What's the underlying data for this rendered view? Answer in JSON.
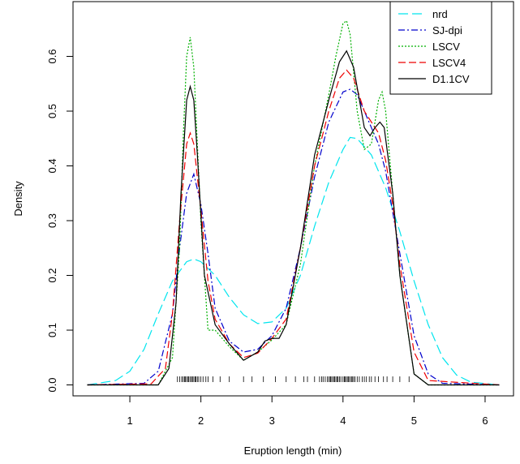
{
  "chart_data": {
    "type": "line",
    "xlabel": "Eruption length (min)",
    "ylabel": "Density",
    "xlim": [
      0.2,
      6.4
    ],
    "ylim": [
      -0.02,
      0.7
    ],
    "x_ticks": [
      1,
      2,
      3,
      4,
      5,
      6
    ],
    "y_ticks": [
      0.0,
      0.1,
      0.2,
      0.3,
      0.4,
      0.5,
      0.6
    ],
    "x_tick_labels": [
      "1",
      "2",
      "3",
      "4",
      "5",
      "6"
    ],
    "y_tick_labels": [
      "0.0",
      "0.1",
      "0.2",
      "0.3",
      "0.4",
      "0.5",
      "0.6"
    ],
    "grid": false,
    "legend_position": "top-right",
    "series": [
      {
        "name": "nrd",
        "color": "#00E5EE",
        "dash": "12,5",
        "x": [
          0.4,
          0.8,
          1.0,
          1.2,
          1.4,
          1.6,
          1.8,
          1.9,
          2.0,
          2.2,
          2.4,
          2.6,
          2.8,
          3.0,
          3.2,
          3.4,
          3.6,
          3.8,
          4.0,
          4.1,
          4.2,
          4.4,
          4.6,
          4.8,
          5.0,
          5.2,
          5.4,
          5.6,
          5.8,
          6.2
        ],
        "y": [
          0.0,
          0.008,
          0.025,
          0.065,
          0.13,
          0.19,
          0.225,
          0.23,
          0.225,
          0.2,
          0.16,
          0.128,
          0.112,
          0.115,
          0.14,
          0.2,
          0.29,
          0.37,
          0.43,
          0.452,
          0.45,
          0.42,
          0.36,
          0.28,
          0.19,
          0.11,
          0.05,
          0.018,
          0.005,
          0.0
        ]
      },
      {
        "name": "SJ-dpi",
        "color": "#0000CC",
        "dash": "8,3,2,3",
        "x": [
          0.4,
          1.2,
          1.4,
          1.6,
          1.7,
          1.8,
          1.9,
          2.0,
          2.1,
          2.2,
          2.4,
          2.6,
          2.8,
          3.0,
          3.2,
          3.4,
          3.6,
          3.8,
          4.0,
          4.1,
          4.2,
          4.3,
          4.4,
          4.5,
          4.6,
          4.8,
          5.0,
          5.2,
          5.4,
          6.2
        ],
        "y": [
          0.0,
          0.003,
          0.025,
          0.13,
          0.25,
          0.35,
          0.385,
          0.33,
          0.24,
          0.14,
          0.08,
          0.06,
          0.065,
          0.09,
          0.14,
          0.25,
          0.38,
          0.48,
          0.535,
          0.54,
          0.53,
          0.5,
          0.47,
          0.44,
          0.39,
          0.24,
          0.09,
          0.02,
          0.003,
          0.0
        ]
      },
      {
        "name": "LSCV",
        "color": "#00B000",
        "dash": "2,2",
        "x": [
          0.4,
          1.4,
          1.6,
          1.7,
          1.75,
          1.8,
          1.85,
          1.9,
          2.0,
          2.1,
          2.2,
          2.4,
          2.6,
          2.8,
          3.0,
          3.2,
          3.4,
          3.6,
          3.8,
          3.9,
          4.0,
          4.05,
          4.1,
          4.2,
          4.3,
          4.4,
          4.5,
          4.55,
          4.6,
          4.7,
          4.8,
          5.0,
          5.2,
          6.2
        ],
        "y": [
          0.0,
          0.0,
          0.05,
          0.25,
          0.45,
          0.6,
          0.635,
          0.58,
          0.3,
          0.1,
          0.1,
          0.07,
          0.045,
          0.06,
          0.082,
          0.11,
          0.22,
          0.4,
          0.53,
          0.6,
          0.66,
          0.665,
          0.64,
          0.5,
          0.43,
          0.44,
          0.52,
          0.535,
          0.5,
          0.35,
          0.2,
          0.02,
          0.0,
          0.0
        ]
      },
      {
        "name": "LSCV4",
        "color": "#EE0000",
        "dash": "9,4",
        "x": [
          0.4,
          1.3,
          1.5,
          1.6,
          1.7,
          1.8,
          1.85,
          1.9,
          2.0,
          2.1,
          2.2,
          2.4,
          2.6,
          2.8,
          3.0,
          3.2,
          3.4,
          3.6,
          3.8,
          3.95,
          4.05,
          4.15,
          4.3,
          4.4,
          4.5,
          4.6,
          4.7,
          4.8,
          5.0,
          5.2,
          6.2
        ],
        "y": [
          0.0,
          0.002,
          0.03,
          0.13,
          0.3,
          0.44,
          0.46,
          0.44,
          0.32,
          0.19,
          0.12,
          0.075,
          0.05,
          0.058,
          0.085,
          0.12,
          0.25,
          0.4,
          0.5,
          0.56,
          0.575,
          0.56,
          0.5,
          0.48,
          0.46,
          0.41,
          0.33,
          0.22,
          0.06,
          0.008,
          0.0
        ]
      },
      {
        "name": "D1.1CV",
        "color": "#000000",
        "dash": "",
        "x": [
          0.4,
          1.4,
          1.55,
          1.65,
          1.72,
          1.8,
          1.85,
          1.9,
          1.95,
          2.05,
          2.2,
          2.4,
          2.6,
          2.8,
          2.9,
          3.0,
          3.1,
          3.2,
          3.4,
          3.6,
          3.8,
          3.95,
          4.05,
          4.15,
          4.3,
          4.38,
          4.45,
          4.52,
          4.58,
          4.7,
          4.8,
          5.0,
          5.2,
          6.2
        ],
        "y": [
          0.0,
          0.0,
          0.03,
          0.15,
          0.35,
          0.52,
          0.545,
          0.52,
          0.42,
          0.2,
          0.11,
          0.075,
          0.045,
          0.06,
          0.08,
          0.085,
          0.085,
          0.11,
          0.25,
          0.42,
          0.52,
          0.59,
          0.61,
          0.58,
          0.47,
          0.455,
          0.47,
          0.48,
          0.47,
          0.35,
          0.2,
          0.02,
          0.0,
          0.0
        ]
      }
    ],
    "rug": [
      1.67,
      1.7,
      1.73,
      1.75,
      1.77,
      1.78,
      1.8,
      1.82,
      1.83,
      1.85,
      1.87,
      1.88,
      1.9,
      1.92,
      1.93,
      1.95,
      1.97,
      2.0,
      2.03,
      2.07,
      2.1,
      2.17,
      2.27,
      2.4,
      2.6,
      2.72,
      2.88,
      3.05,
      3.2,
      3.33,
      3.45,
      3.5,
      3.6,
      3.67,
      3.7,
      3.72,
      3.75,
      3.78,
      3.8,
      3.82,
      3.83,
      3.85,
      3.87,
      3.88,
      3.9,
      3.92,
      3.93,
      3.95,
      3.97,
      4.0,
      4.02,
      4.03,
      4.05,
      4.07,
      4.08,
      4.1,
      4.12,
      4.13,
      4.15,
      4.17,
      4.2,
      4.23,
      4.27,
      4.3,
      4.33,
      4.37,
      4.4,
      4.45,
      4.5,
      4.57,
      4.62,
      4.7,
      4.8,
      4.93
    ]
  }
}
